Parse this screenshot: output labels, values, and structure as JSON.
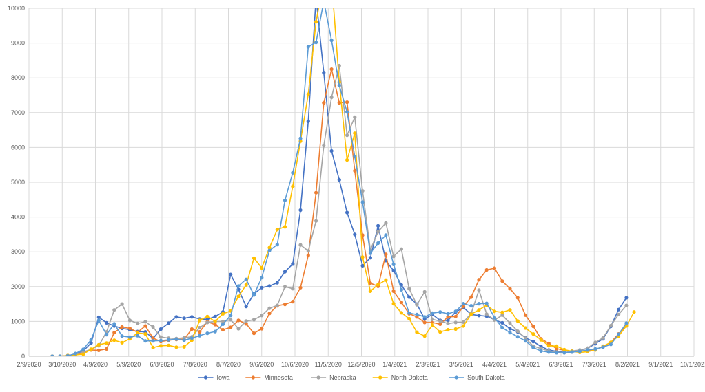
{
  "chart_data": {
    "type": "line",
    "title": "",
    "xlabel": "",
    "ylabel": "",
    "x_ticks": [
      "2/9/2020",
      "3/10/2020",
      "4/9/2020",
      "5/9/2020",
      "6/8/2020",
      "7/8/2020",
      "8/7/2020",
      "9/6/2020",
      "10/6/2020",
      "11/5/2020",
      "12/5/2020",
      "1/4/2021",
      "2/3/2021",
      "3/5/2021",
      "4/4/2021",
      "5/4/2021",
      "6/3/2021",
      "7/3/2021",
      "8/2/2021",
      "9/1/2021",
      "10/1/2021"
    ],
    "xlim": [
      "2/9/2020",
      "10/1/2021"
    ],
    "ylim": [
      0,
      10000
    ],
    "y_ticks": [
      0,
      1000,
      2000,
      3000,
      4000,
      5000,
      6000,
      7000,
      8000,
      9000,
      10000
    ],
    "grid": "horizontal and vertical",
    "legend_position": "bottom",
    "x": [
      "3/1/2020",
      "3/8/2020",
      "3/15/2020",
      "3/22/2020",
      "3/29/2020",
      "4/5/2020",
      "4/12/2020",
      "4/19/2020",
      "4/26/2020",
      "5/3/2020",
      "5/10/2020",
      "5/17/2020",
      "5/24/2020",
      "5/31/2020",
      "6/7/2020",
      "6/14/2020",
      "6/21/2020",
      "6/28/2020",
      "7/5/2020",
      "7/12/2020",
      "7/19/2020",
      "7/26/2020",
      "8/2/2020",
      "8/9/2020",
      "8/16/2020",
      "8/23/2020",
      "8/30/2020",
      "9/6/2020",
      "9/13/2020",
      "9/20/2020",
      "9/27/2020",
      "10/4/2020",
      "10/11/2020",
      "10/18/2020",
      "10/25/2020",
      "11/1/2020",
      "11/8/2020",
      "11/15/2020",
      "11/22/2020",
      "11/29/2020",
      "12/6/2020",
      "12/13/2020",
      "12/20/2020",
      "12/27/2020",
      "1/3/2021",
      "1/10/2021",
      "1/17/2021",
      "1/24/2021",
      "1/31/2021",
      "2/7/2021",
      "2/14/2021",
      "2/21/2021",
      "2/28/2021",
      "3/7/2021",
      "3/14/2021",
      "3/21/2021",
      "3/28/2021",
      "4/4/2021",
      "4/11/2021",
      "4/18/2021",
      "4/25/2021",
      "5/2/2021",
      "5/9/2021",
      "5/16/2021",
      "5/23/2021",
      "5/30/2021",
      "6/6/2021",
      "6/13/2021",
      "6/20/2021",
      "6/27/2021",
      "7/4/2021",
      "7/11/2021",
      "7/18/2021",
      "7/25/2021",
      "8/1/2021",
      "8/8/2021"
    ],
    "series": [
      {
        "name": "Iowa",
        "color": "#4472C4",
        "values": [
          0,
          0,
          20,
          60,
          150,
          380,
          1120,
          960,
          870,
          800,
          760,
          710,
          700,
          510,
          780,
          950,
          1130,
          1090,
          1130,
          1070,
          1060,
          1140,
          1270,
          2350,
          1920,
          1430,
          1790,
          1970,
          2020,
          2110,
          2430,
          2650,
          4200,
          6750,
          10300,
          8150,
          5900,
          5070,
          4130,
          3500,
          2600,
          2830,
          3750,
          2750,
          2460,
          2050,
          1700,
          1500,
          1070,
          1200,
          1030,
          1030,
          1270,
          1400,
          1200,
          1170,
          1150,
          1050,
          960,
          790,
          700,
          530,
          420,
          280,
          180,
          140,
          110,
          120,
          170,
          230,
          360,
          500,
          860,
          1340,
          1680,
          null
        ]
      },
      {
        "name": "Minnesota",
        "color": "#ED7D31",
        "values": [
          0,
          0,
          20,
          50,
          100,
          180,
          170,
          210,
          680,
          840,
          800,
          690,
          870,
          520,
          420,
          460,
          480,
          490,
          780,
          700,
          990,
          910,
          760,
          830,
          1030,
          930,
          660,
          790,
          1230,
          1450,
          1490,
          1570,
          1970,
          2900,
          4700,
          7280,
          8250,
          7280,
          7300,
          5330,
          3480,
          2100,
          2010,
          2930,
          1870,
          1550,
          1220,
          1130,
          970,
          970,
          920,
          1130,
          1140,
          1430,
          1700,
          2200,
          2480,
          2530,
          2160,
          1940,
          1680,
          1180,
          860,
          500,
          370,
          220,
          170,
          120,
          150,
          170,
          190,
          280,
          400,
          640,
          900,
          null
        ]
      },
      {
        "name": "Nebraska",
        "color": "#A5A5A5",
        "values": [
          0,
          0,
          20,
          60,
          120,
          200,
          300,
          700,
          1330,
          1500,
          1030,
          940,
          990,
          840,
          550,
          520,
          510,
          530,
          560,
          820,
          970,
          1000,
          1000,
          1050,
          790,
          1010,
          1050,
          1170,
          1380,
          1460,
          2000,
          1940,
          3200,
          3030,
          3890,
          6050,
          7440,
          8350,
          6350,
          6870,
          4750,
          3060,
          3580,
          3830,
          2870,
          3080,
          1940,
          1480,
          1850,
          1060,
          1010,
          940,
          970,
          980,
          1230,
          1900,
          1210,
          1040,
          1180,
          950,
          720,
          520,
          290,
          220,
          150,
          120,
          100,
          150,
          180,
          230,
          400,
          530,
          880,
          1200,
          1460,
          null
        ]
      },
      {
        "name": "North Dakota",
        "color": "#FFC000",
        "values": [
          0,
          0,
          20,
          40,
          60,
          200,
          330,
          380,
          460,
          390,
          500,
          670,
          640,
          250,
          300,
          310,
          260,
          270,
          460,
          1030,
          1140,
          1000,
          1220,
          1300,
          1720,
          2050,
          2820,
          2540,
          3120,
          3640,
          3720,
          4880,
          6180,
          7530,
          9610,
          10800,
          10800,
          7880,
          5640,
          6410,
          2850,
          1870,
          2060,
          2190,
          1510,
          1250,
          1080,
          690,
          580,
          900,
          700,
          760,
          780,
          870,
          1210,
          1330,
          1470,
          1290,
          1260,
          1330,
          1010,
          810,
          640,
          470,
          300,
          290,
          190,
          140,
          110,
          130,
          180,
          290,
          400,
          580,
          870,
          1270
        ]
      },
      {
        "name": "South Dakota",
        "color": "#5B9BD5",
        "values": [
          0,
          0,
          10,
          80,
          200,
          470,
          1030,
          620,
          930,
          580,
          550,
          590,
          440,
          440,
          450,
          470,
          490,
          460,
          520,
          590,
          660,
          710,
          920,
          1170,
          2020,
          2210,
          1760,
          2260,
          3040,
          3210,
          4480,
          5270,
          6260,
          8890,
          9020,
          10200,
          9080,
          7780,
          7020,
          5740,
          4430,
          2960,
          3250,
          3480,
          2640,
          1910,
          1240,
          1200,
          1130,
          1240,
          1270,
          1220,
          1290,
          1510,
          1450,
          1510,
          1520,
          1110,
          820,
          680,
          560,
          440,
          250,
          150,
          120,
          100,
          100,
          120,
          140,
          180,
          210,
          260,
          340,
          630,
          950,
          null
        ]
      }
    ]
  }
}
